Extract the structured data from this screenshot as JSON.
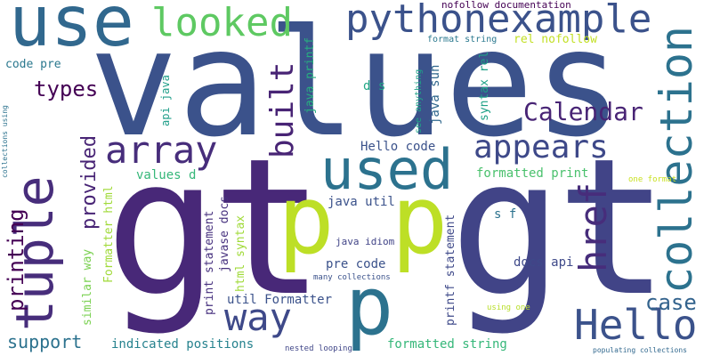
{
  "word_cloud": {
    "background": "#ffffff",
    "words": [
      {
        "text": "values",
        "color": "#3b528b"
      },
      {
        "text": "gt",
        "color": "#482878"
      },
      {
        "text": "gt",
        "color": "#414487"
      },
      {
        "text": "use",
        "color": "#31688e"
      },
      {
        "text": "looked",
        "color": "#5ec962"
      },
      {
        "text": "pythonexample",
        "color": "#3b528b"
      },
      {
        "text": "p p",
        "color": "#bddf26"
      },
      {
        "text": "p",
        "color": "#2c728e"
      },
      {
        "text": "used",
        "color": "#2c728e"
      },
      {
        "text": "tuple",
        "color": "#472d7b"
      },
      {
        "text": "collection",
        "color": "#2c728e"
      },
      {
        "text": "array",
        "color": "#472d7b"
      },
      {
        "text": "appears",
        "color": "#3e4989"
      },
      {
        "text": "Hello",
        "color": "#3b528b"
      },
      {
        "text": "way",
        "color": "#3e4989"
      },
      {
        "text": "href",
        "color": "#472d7b"
      },
      {
        "text": "built",
        "color": "#482475"
      },
      {
        "text": "Calendar",
        "color": "#482475"
      },
      {
        "text": "case",
        "color": "#33638d"
      },
      {
        "text": "printing",
        "color": "#440154"
      },
      {
        "text": "provided",
        "color": "#482475"
      },
      {
        "text": "types",
        "color": "#440154"
      },
      {
        "text": "support",
        "color": "#2c728e"
      },
      {
        "text": "code pre",
        "color": "#2a788e"
      },
      {
        "text": "nofollow documentation",
        "color": "#440154"
      },
      {
        "text": "format string",
        "color": "#2a788e"
      },
      {
        "text": "rel nofollow",
        "color": "#c2df23"
      },
      {
        "text": "syntax rel",
        "color": "#1fa187"
      },
      {
        "text": "see anything",
        "color": "#1fa187"
      },
      {
        "text": "java sun",
        "color": "#31688e"
      },
      {
        "text": "api java",
        "color": "#1f9e89"
      },
      {
        "text": "d s",
        "color": "#21a685"
      },
      {
        "text": "java printf",
        "color": "#28ae80"
      },
      {
        "text": "Hello code",
        "color": "#3b528b"
      },
      {
        "text": "formatted print",
        "color": "#4ac16d"
      },
      {
        "text": "values d",
        "color": "#35b779"
      },
      {
        "text": "Formatter html",
        "color": "#a0da39"
      },
      {
        "text": "java util",
        "color": "#3b528b"
      },
      {
        "text": "s f",
        "color": "#2c728e"
      },
      {
        "text": "one format",
        "color": "#c8e020"
      },
      {
        "text": "java idiom",
        "color": "#414487"
      },
      {
        "text": "javase docs",
        "color": "#46317e"
      },
      {
        "text": "print statement",
        "color": "#46307e"
      },
      {
        "text": "html syntax",
        "color": "#a0da39"
      },
      {
        "text": "pre code",
        "color": "#3b528b"
      },
      {
        "text": "docs api",
        "color": "#3e4989"
      },
      {
        "text": "printf statement",
        "color": "#3e4989"
      },
      {
        "text": "many collections",
        "color": "#3b528b"
      },
      {
        "text": "util Formatter",
        "color": "#3b528b"
      },
      {
        "text": "using one",
        "color": "#b8de29"
      },
      {
        "text": "similar way",
        "color": "#7ad151"
      },
      {
        "text": "indicated positions",
        "color": "#26828e"
      },
      {
        "text": "nested looping",
        "color": "#404688"
      },
      {
        "text": "formatted string",
        "color": "#35b779"
      },
      {
        "text": "populating collections",
        "color": "#31688e"
      },
      {
        "text": "collections using",
        "color": "#2c728e"
      }
    ]
  }
}
